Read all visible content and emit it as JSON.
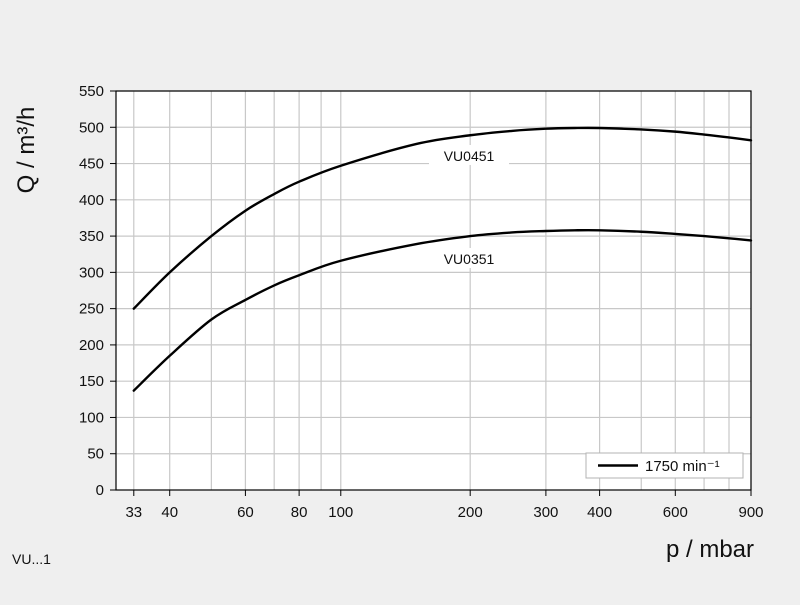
{
  "chart_data": {
    "type": "line",
    "xlabel": "p / mbar",
    "ylabel": "Q / m³/h",
    "x_scale": "log",
    "xlim": [
      30,
      900
    ],
    "ylim": [
      0,
      550
    ],
    "x_ticks": [
      33,
      40,
      60,
      80,
      100,
      200,
      300,
      400,
      600,
      900
    ],
    "x_minor_gridlines": [
      50,
      70,
      90,
      500,
      700,
      800
    ],
    "y_ticks": [
      0,
      50,
      100,
      150,
      200,
      250,
      300,
      350,
      400,
      450,
      500,
      550
    ],
    "grid": true,
    "legend": {
      "placement": "bottom-right",
      "entries": [
        "1750 min⁻¹"
      ]
    },
    "series": [
      {
        "name": "VU0451",
        "x": [
          33,
          40,
          50,
          60,
          70,
          80,
          100,
          150,
          200,
          250,
          300,
          350,
          400,
          500,
          600,
          700,
          800,
          900
        ],
        "y": [
          250,
          300,
          350,
          385,
          408,
          425,
          447,
          477,
          489,
          495,
          498,
          499,
          499,
          497,
          494,
          490,
          486,
          482
        ]
      },
      {
        "name": "VU0351",
        "x": [
          33,
          40,
          50,
          60,
          70,
          80,
          100,
          150,
          200,
          250,
          300,
          350,
          400,
          500,
          600,
          700,
          800,
          900
        ],
        "y": [
          137,
          185,
          235,
          262,
          282,
          296,
          316,
          339,
          350,
          355,
          357,
          358,
          358,
          356,
          353,
          350,
          347,
          344
        ]
      }
    ],
    "footnote": "VU...1"
  }
}
